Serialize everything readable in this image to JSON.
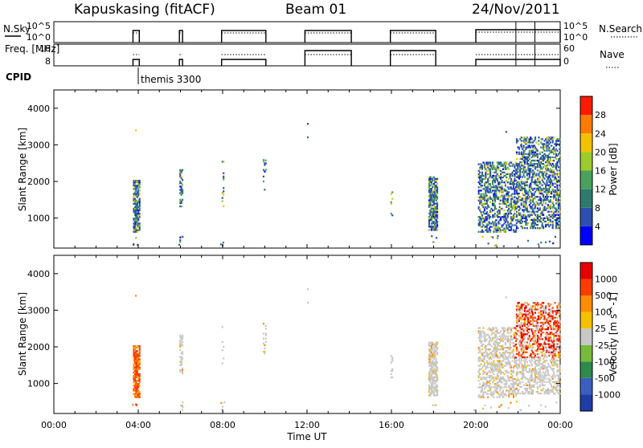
{
  "header": {
    "station": "Kapuskasing (fitACF)",
    "beam": "Beam 01",
    "date": "24/Nov/2011"
  },
  "chart_data": [
    {
      "type": "line",
      "panel": "noise",
      "ylabel_left": "N.Sky",
      "ylabel_right": "N.Search",
      "left_ticks": [
        "10^5",
        "10^0"
      ],
      "right_ticks": [
        "10^5",
        "10^0"
      ],
      "series": [
        {
          "name": "N.Sky",
          "style": "solid"
        },
        {
          "name": "N.Search",
          "style": "dotted"
        }
      ]
    },
    {
      "type": "line",
      "panel": "frequency",
      "ylabel_left": "Freq. [MHz]",
      "ylabel_right": "Nave",
      "left_ticks": [
        "18",
        "8"
      ],
      "right_ticks": [
        "60",
        "0"
      ],
      "series": [
        {
          "name": "Freq.",
          "style": "solid"
        },
        {
          "name": "Nave",
          "style": "dotted"
        }
      ]
    },
    {
      "type": "annotation",
      "panel": "cpid",
      "label": "CPID",
      "annotation": "themis 3300",
      "time_h": 4.0
    },
    {
      "type": "heatmap",
      "panel": "power",
      "ylabel": "Slant Range [km]",
      "yticks": [
        1000,
        2000,
        3000,
        4000
      ],
      "ylim": [
        180,
        4500
      ],
      "xlim": [
        0,
        24
      ],
      "colorbar_label": "Power [dB]",
      "colorbar_ticks": [
        "4",
        "8",
        "12",
        "16",
        "20",
        "24",
        "28"
      ],
      "colors": [
        "#0000ff",
        "#2d4fb0",
        "#2f7a6f",
        "#49a15b",
        "#9ccb2e",
        "#f2c200",
        "#ff7a00",
        "#ff1a00"
      ]
    },
    {
      "type": "heatmap",
      "panel": "velocity",
      "ylabel": "Slant Range [km]",
      "yticks": [
        1000,
        2000,
        3000,
        4000
      ],
      "ylim": [
        180,
        4500
      ],
      "xlim": [
        0,
        24
      ],
      "colorbar_label": "Velocity [m s^-1]",
      "colorbar_ticks": [
        "1000",
        "500",
        "100",
        "25",
        "-25",
        "-100",
        "-500",
        "-1000"
      ],
      "colors": [
        "#1e3da8",
        "#3b5fbf",
        "#2e8a4d",
        "#77bb3a",
        "#c8c8c8",
        "#f4c000",
        "#ff8c00",
        "#ff3c00",
        "#e60000"
      ]
    }
  ],
  "xaxis": {
    "label": "Time UT",
    "ticks": [
      "00:00",
      "04:00",
      "08:00",
      "12:00",
      "16:00",
      "20:00",
      "00:00"
    ]
  }
}
